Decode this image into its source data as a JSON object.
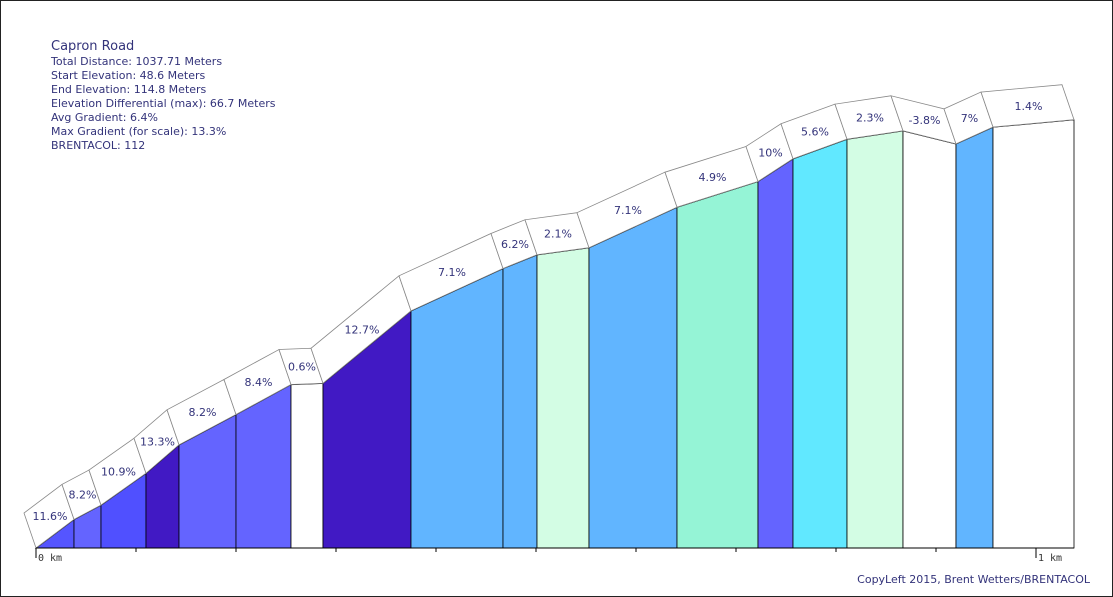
{
  "info": {
    "title": "Capron Road",
    "total_distance": "Total Distance: 1037.71 Meters",
    "start_elevation": "Start Elevation: 48.6 Meters",
    "end_elevation": "End Elevation: 114.8 Meters",
    "elevation_differential": "Elevation Differential (max): 66.7 Meters",
    "avg_gradient": "Avg Gradient: 6.4%",
    "max_gradient": "Max Gradient (for scale): 13.3%",
    "brentacol": "BRENTACOL: 112"
  },
  "footer": {
    "copyleft": "CopyLeft 2015, Brent Wetters/BRENTACOL"
  },
  "chart_data": {
    "type": "area",
    "x_unit": "km",
    "xlim": [
      0,
      1.04
    ],
    "ylim": [
      48.6,
      120
    ],
    "x_tick_labels": [
      {
        "x": 0,
        "label": "0 km"
      },
      {
        "x": 1,
        "label": "1 km"
      }
    ],
    "minor_ticks_km": [
      0.1,
      0.2,
      0.3,
      0.4,
      0.5,
      0.6,
      0.7,
      0.8,
      0.9
    ],
    "segments": [
      {
        "start_km": 0.0,
        "end_km": 0.038,
        "gradient": 11.6,
        "label": "11.6%",
        "color": "#5555ff"
      },
      {
        "start_km": 0.038,
        "end_km": 0.065,
        "gradient": 8.2,
        "label": "8.2%",
        "color": "#6464ff"
      },
      {
        "start_km": 0.065,
        "end_km": 0.11,
        "gradient": 10.9,
        "label": "10.9%",
        "color": "#5050ff"
      },
      {
        "start_km": 0.11,
        "end_km": 0.143,
        "gradient": 13.3,
        "label": "13.3%",
        "color": "#4119c4"
      },
      {
        "start_km": 0.143,
        "end_km": 0.2,
        "gradient": 8.2,
        "label": "8.2%",
        "color": "#6464ff"
      },
      {
        "start_km": 0.2,
        "end_km": 0.255,
        "gradient": 8.4,
        "label": "8.4%",
        "color": "#6464ff"
      },
      {
        "start_km": 0.255,
        "end_km": 0.287,
        "gradient": 0.6,
        "label": "0.6%",
        "color": "#ffffff"
      },
      {
        "start_km": 0.287,
        "end_km": 0.375,
        "gradient": 12.7,
        "label": "12.7%",
        "color": "#4119c4"
      },
      {
        "start_km": 0.375,
        "end_km": 0.467,
        "gradient": 7.1,
        "label": "7.1%",
        "color": "#61b5ff"
      },
      {
        "start_km": 0.467,
        "end_km": 0.501,
        "gradient": 6.2,
        "label": "6.2%",
        "color": "#61b5ff"
      },
      {
        "start_km": 0.501,
        "end_km": 0.553,
        "gradient": 2.1,
        "label": "2.1%",
        "color": "#d3fde4"
      },
      {
        "start_km": 0.553,
        "end_km": 0.641,
        "gradient": 7.1,
        "label": "7.1%",
        "color": "#61b5ff"
      },
      {
        "start_km": 0.641,
        "end_km": 0.722,
        "gradient": 4.9,
        "label": "4.9%",
        "color": "#95f4d6"
      },
      {
        "start_km": 0.722,
        "end_km": 0.757,
        "gradient": 10.0,
        "label": "10%",
        "color": "#6464ff"
      },
      {
        "start_km": 0.757,
        "end_km": 0.811,
        "gradient": 5.6,
        "label": "5.6%",
        "color": "#61e8ff"
      },
      {
        "start_km": 0.811,
        "end_km": 0.867,
        "gradient": 2.3,
        "label": "2.3%",
        "color": "#d3fde4"
      },
      {
        "start_km": 0.867,
        "end_km": 0.92,
        "gradient": -3.8,
        "label": "-3.8%",
        "color": "#ffffff"
      },
      {
        "start_km": 0.92,
        "end_km": 0.957,
        "gradient": 7.0,
        "label": "7%",
        "color": "#61b5ff"
      },
      {
        "start_km": 0.957,
        "end_km": 1.038,
        "gradient": 1.4,
        "label": "1.4%",
        "color": "#ffffff"
      }
    ]
  }
}
